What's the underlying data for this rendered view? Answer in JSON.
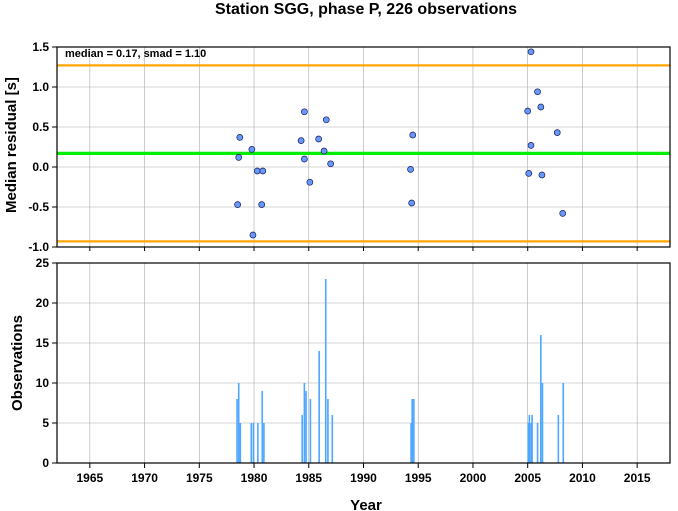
{
  "chart_data": [
    {
      "type": "scatter",
      "title": "Station SGG, phase P, 226 observations",
      "ylabel": "Median residual [s]",
      "annotation": "median = 0.17, smad = 1.10",
      "xlim": [
        1962,
        2018
      ],
      "ylim": [
        -1.0,
        1.5
      ],
      "yticks": [
        -1.0,
        -0.5,
        0.0,
        0.5,
        1.0,
        1.5
      ],
      "ytick_labels": [
        "-1.0",
        "-0.5",
        "0.0",
        "0.5",
        "1.0",
        "1.5"
      ],
      "grid": true,
      "median_line": 0.17,
      "bounds": [
        1.27,
        -0.93
      ],
      "colors": {
        "points": "#6699ff",
        "median": "#00ee00",
        "bounds": "#ffa500",
        "grid": "#aaaaaa"
      },
      "points": [
        {
          "x": 1978.5,
          "y": -0.47
        },
        {
          "x": 1978.6,
          "y": 0.12
        },
        {
          "x": 1978.7,
          "y": 0.37
        },
        {
          "x": 1979.8,
          "y": 0.22
        },
        {
          "x": 1979.9,
          "y": -0.85
        },
        {
          "x": 1980.3,
          "y": -0.05
        },
        {
          "x": 1980.8,
          "y": -0.05
        },
        {
          "x": 1980.7,
          "y": -0.47
        },
        {
          "x": 1984.3,
          "y": 0.33
        },
        {
          "x": 1984.6,
          "y": 0.69
        },
        {
          "x": 1984.6,
          "y": 0.1
        },
        {
          "x": 1985.1,
          "y": -0.19
        },
        {
          "x": 1985.9,
          "y": 0.35
        },
        {
          "x": 1986.4,
          "y": 0.2
        },
        {
          "x": 1986.6,
          "y": 0.59
        },
        {
          "x": 1987.0,
          "y": 0.04
        },
        {
          "x": 1994.3,
          "y": -0.03
        },
        {
          "x": 1994.4,
          "y": -0.45
        },
        {
          "x": 1994.5,
          "y": 0.4
        },
        {
          "x": 2005.0,
          "y": 0.7
        },
        {
          "x": 2005.1,
          "y": -0.08
        },
        {
          "x": 2005.3,
          "y": 0.27
        },
        {
          "x": 2005.3,
          "y": 1.44
        },
        {
          "x": 2005.9,
          "y": 0.94
        },
        {
          "x": 2006.2,
          "y": 0.75
        },
        {
          "x": 2006.3,
          "y": -0.1
        },
        {
          "x": 2007.7,
          "y": 0.43
        },
        {
          "x": 2008.2,
          "y": -0.58
        }
      ]
    },
    {
      "type": "bar",
      "xlabel": "Year",
      "ylabel": "Observations",
      "xlim": [
        1962,
        2018
      ],
      "ylim": [
        0,
        25
      ],
      "xticks": [
        1965,
        1970,
        1975,
        1980,
        1985,
        1990,
        1995,
        2000,
        2005,
        2010,
        2015
      ],
      "xtick_labels": [
        "1965",
        "1970",
        "1975",
        "1980",
        "1985",
        "1990",
        "1995",
        "2000",
        "2005",
        "2010",
        "2015"
      ],
      "yticks": [
        0,
        5,
        10,
        15,
        20,
        25
      ],
      "ytick_labels": [
        "0",
        "5",
        "10",
        "15",
        "20",
        "25"
      ],
      "grid": true,
      "color": "#4da6ff",
      "bars": [
        {
          "x": 1978.45,
          "y": 8
        },
        {
          "x": 1978.6,
          "y": 10
        },
        {
          "x": 1978.75,
          "y": 5
        },
        {
          "x": 1979.75,
          "y": 5
        },
        {
          "x": 1979.95,
          "y": 5
        },
        {
          "x": 1980.35,
          "y": 5
        },
        {
          "x": 1980.75,
          "y": 9
        },
        {
          "x": 1980.9,
          "y": 5
        },
        {
          "x": 1984.4,
          "y": 6
        },
        {
          "x": 1984.6,
          "y": 10
        },
        {
          "x": 1984.75,
          "y": 9
        },
        {
          "x": 1985.15,
          "y": 8
        },
        {
          "x": 1985.95,
          "y": 14
        },
        {
          "x": 1986.55,
          "y": 23
        },
        {
          "x": 1986.75,
          "y": 8
        },
        {
          "x": 1987.15,
          "y": 6
        },
        {
          "x": 1994.35,
          "y": 5
        },
        {
          "x": 1994.45,
          "y": 8
        },
        {
          "x": 1994.6,
          "y": 8
        },
        {
          "x": 2005.05,
          "y": 5
        },
        {
          "x": 2005.15,
          "y": 6
        },
        {
          "x": 2005.3,
          "y": 5
        },
        {
          "x": 2005.4,
          "y": 6
        },
        {
          "x": 2005.9,
          "y": 5
        },
        {
          "x": 2006.2,
          "y": 16
        },
        {
          "x": 2006.35,
          "y": 10
        },
        {
          "x": 2007.8,
          "y": 6
        },
        {
          "x": 2008.25,
          "y": 10
        }
      ]
    }
  ]
}
